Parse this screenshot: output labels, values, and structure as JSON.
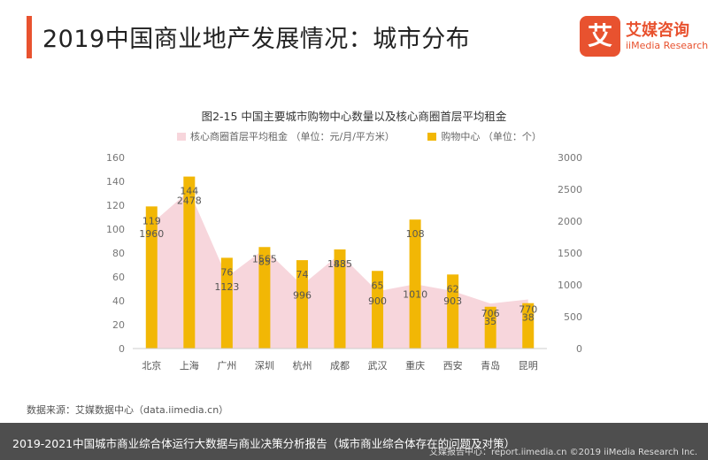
{
  "header": {
    "title": "2019中国商业地产发展情况：城市分布",
    "logo_cn": "艾媒咨询",
    "logo_en": "iiMedia Research",
    "logo_mark": "艾"
  },
  "colors": {
    "accent": "#e8522f",
    "bar": "#f2b705",
    "area": "#f7d6dc"
  },
  "chart_data": {
    "type": "bar",
    "title": "图2-15 中国主要城市购物中心数量以及核心商圈首层平均租金",
    "categories": [
      "北京",
      "上海",
      "广州",
      "深圳",
      "杭州",
      "成都",
      "武汉",
      "重庆",
      "西安",
      "青岛",
      "昆明"
    ],
    "series": [
      {
        "name": "核心商圈首层平均租金 （单位：元/月/平方米）",
        "type": "area",
        "axis": "right",
        "values": [
          1960,
          2478,
          1123,
          1565,
          996,
          1485,
          900,
          1010,
          903,
          706,
          770
        ]
      },
      {
        "name": "购物中心 （单位：个）",
        "type": "bar",
        "axis": "left",
        "values": [
          119,
          144,
          76,
          85,
          74,
          83,
          65,
          108,
          62,
          35,
          38
        ]
      }
    ],
    "y_left": {
      "min": 0,
      "max": 160,
      "ticks": [
        0,
        20,
        40,
        60,
        80,
        100,
        120,
        140,
        160
      ]
    },
    "y_right": {
      "min": 0,
      "max": 3000,
      "ticks": [
        0,
        500,
        1000,
        1500,
        2000,
        2500,
        3000
      ]
    },
    "grid": false,
    "legend_position": "top"
  },
  "footer": {
    "source": "数据来源：艾媒数据中心（data.iimedia.cn）",
    "caption": "2019-2021中国城市商业综合体运行大数据与商业决策分析报告（城市商业综合体存在的问题及对策）",
    "credit": "艾媒报告中心：report.iimedia.cn ©2019 iiMedia Research Inc."
  }
}
